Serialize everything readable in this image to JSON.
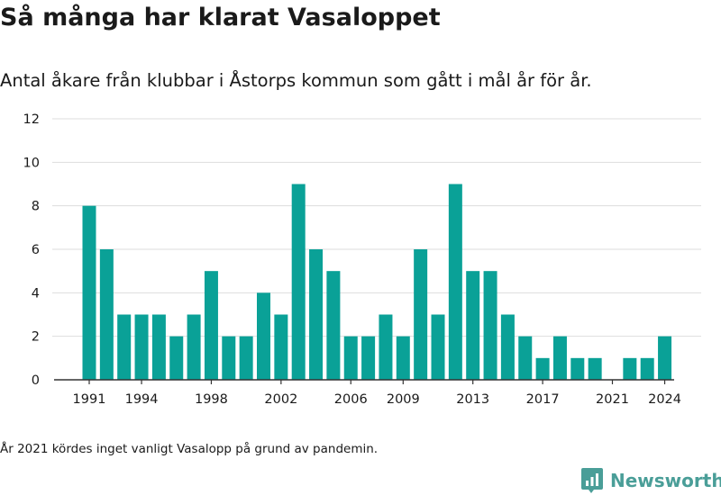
{
  "title": "Så många har klarat Vasaloppet",
  "subtitle": "Antal åkare från klubbar i Åstorps kommun som gått i mål år för år.",
  "footnote": "År 2021 kördes inget vanligt Vasalopp på grund av pandemin.",
  "brand": {
    "name": "Newsworthy",
    "icon": "newsworthy-logo-icon",
    "color": "#4a9e98"
  },
  "chart_data": {
    "type": "bar",
    "title": "Så många har klarat Vasaloppet",
    "subtitle": "Antal åkare från klubbar i Åstorps kommun som gått i mål år för år.",
    "xlabel": "",
    "ylabel": "",
    "categories": [
      1991,
      1992,
      1993,
      1994,
      1995,
      1996,
      1997,
      1998,
      1999,
      2000,
      2001,
      2002,
      2003,
      2004,
      2005,
      2006,
      2007,
      2008,
      2009,
      2010,
      2011,
      2012,
      2013,
      2014,
      2015,
      2016,
      2017,
      2018,
      2019,
      2020,
      2021,
      2022,
      2023,
      2024
    ],
    "values": [
      8,
      6,
      3,
      3,
      3,
      2,
      3,
      5,
      2,
      2,
      4,
      3,
      9,
      6,
      5,
      2,
      2,
      3,
      2,
      6,
      3,
      9,
      5,
      5,
      3,
      2,
      1,
      2,
      1,
      1,
      0,
      1,
      1,
      2
    ],
    "x_tick_labels": [
      "1991",
      "1994",
      "1998",
      "2002",
      "2006",
      "2009",
      "2013",
      "2017",
      "2021",
      "2024"
    ],
    "y_ticks": [
      "0",
      "2",
      "4",
      "6",
      "8",
      "10",
      "12"
    ],
    "ylim": [
      0,
      12
    ],
    "grid": true,
    "legend": "none",
    "bar_color": "#0aa197",
    "grid_color": "#dddddd",
    "axis_color": "#333333"
  }
}
